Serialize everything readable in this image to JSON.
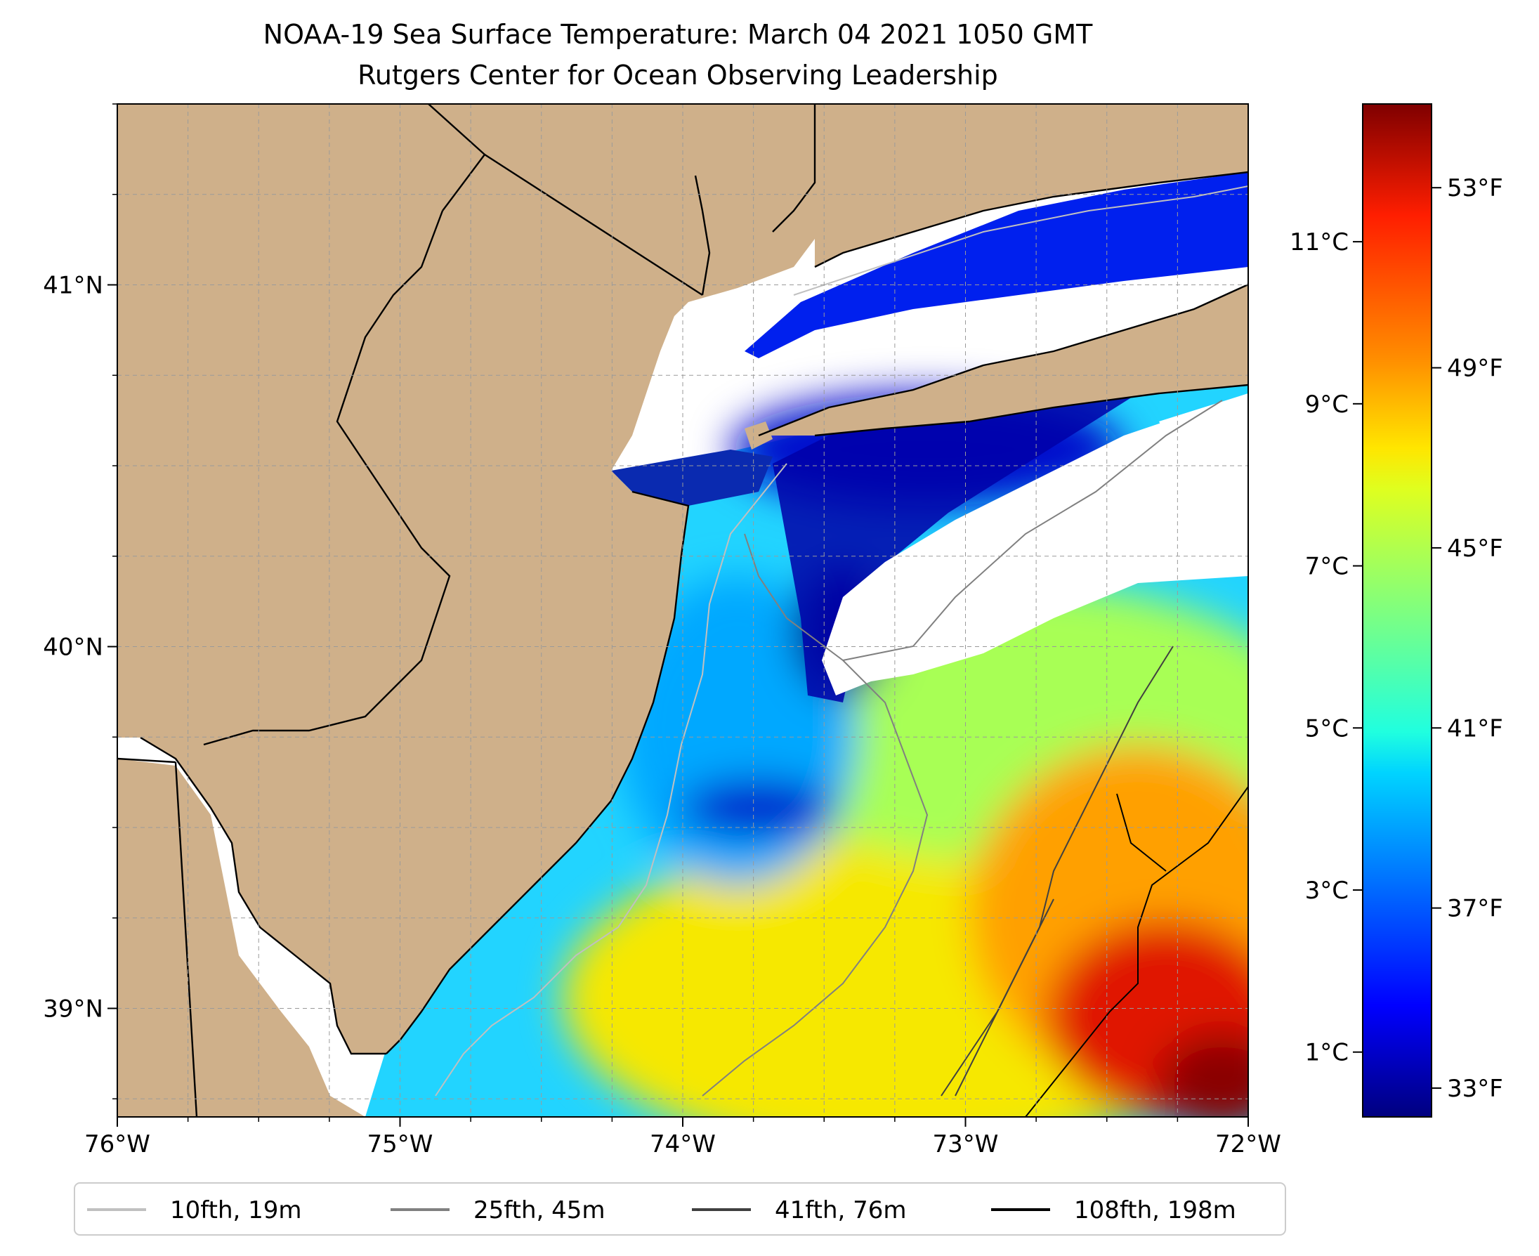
{
  "title": {
    "line1": "NOAA-19 Sea Surface Temperature: March 04 2021 1050 GMT",
    "line2": "Rutgers Center for Ocean Observing Leadership"
  },
  "colors": {
    "land": "#cfb08a",
    "cloud": "#ffffff",
    "coast": "#000000",
    "grid": "#9a9a9a"
  },
  "map": {
    "lon_range": [
      -76,
      -72
    ],
    "lat_range": [
      38.7,
      41.5
    ],
    "lon_ticks": [
      "76°W",
      "75°W",
      "74°W",
      "73°W",
      "72°W"
    ],
    "lat_ticks": [
      "41°N",
      "40°N",
      "39°N"
    ]
  },
  "colorbar": {
    "celsius_ticks": [
      "11°C",
      "9°C",
      "7°C",
      "5°C",
      "3°C",
      "1°C"
    ],
    "fahrenheit_ticks": [
      "53°F",
      "49°F",
      "45°F",
      "41°F",
      "37°F",
      "33°F"
    ],
    "range_c": [
      0.2,
      12.7
    ],
    "colormap": "jet"
  },
  "legend": {
    "placement": "bottom",
    "items": [
      {
        "label": "10fth, 19m",
        "color": "#c0c0c0"
      },
      {
        "label": "25fth, 45m",
        "color": "#808080"
      },
      {
        "label": "41fth, 76m",
        "color": "#404040"
      },
      {
        "label": "108fth, 198m",
        "color": "#000000"
      }
    ]
  }
}
